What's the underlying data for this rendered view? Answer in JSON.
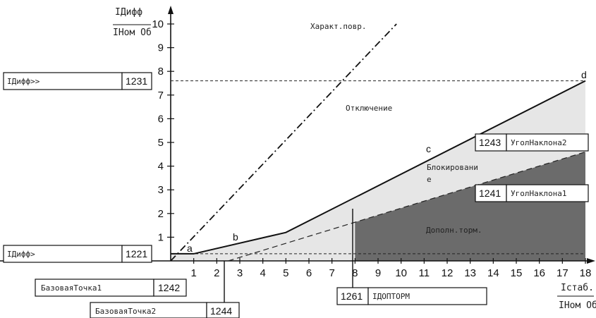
{
  "y_axis": {
    "label_top": "ІДифф",
    "label_bottom": "ІНом Об",
    "ticks": [
      "1",
      "2",
      "3",
      "4",
      "5",
      "6",
      "7",
      "8",
      "9",
      "10"
    ]
  },
  "x_axis": {
    "label_top": "Іcтаб.",
    "label_bottom": "ІНом Об",
    "ticks": [
      "1",
      "2",
      "3",
      "4",
      "5",
      "6",
      "7",
      "8",
      "9",
      "10",
      "11",
      "12",
      "13",
      "14",
      "15",
      "16",
      "17",
      "18"
    ]
  },
  "regions": {
    "trip": "Отключение",
    "block_1": "Блокировани",
    "block_2": "е",
    "add_brake": "Дополн.торм.",
    "fault_char": "Характ.повр."
  },
  "points": {
    "a": "a",
    "b": "b",
    "c": "c",
    "d": "d"
  },
  "param_boxes": {
    "idiff_hi": {
      "name": "ІДифф>>",
      "code": "1231"
    },
    "idiff_lo": {
      "name": "ІДифф>",
      "code": "1221"
    },
    "base_pt1": {
      "name": "БазоваяТочка1",
      "code": "1242"
    },
    "base_pt2": {
      "name": "БазоваяТочка2",
      "code": "1244"
    },
    "add_brake": {
      "name": "ІДОПТОРМ",
      "code": "1261"
    },
    "slope2": {
      "name": "УголНаклона2",
      "code": "1243"
    },
    "slope1": {
      "name": "УголНаклона1",
      "code": "1241"
    }
  },
  "chart_data": {
    "type": "line",
    "xlim": [
      0,
      18
    ],
    "ylim": [
      0,
      10
    ],
    "series": [
      {
        "name": "",
        "x": [
          0,
          1,
          5,
          18
        ],
        "y": [
          0.3,
          0.3,
          1.2,
          7.6
        ]
      },
      {
        "name": "",
        "x": [
          2.5,
          18
        ],
        "y": [
          0,
          4.6
        ]
      },
      {
        "name": "",
        "x": [
          0,
          9.8
        ],
        "y": [
          0,
          10
        ]
      },
      {
        "name": "",
        "x": [
          0,
          18
        ],
        "y": [
          7.6,
          7.6
        ]
      },
      {
        "name": "",
        "x": [
          0,
          18
        ],
        "y": [
          0.3,
          0.3
        ]
      }
    ],
    "colors": {
      "light_region": "#e6e6e6",
      "dark_region": "#6b6b6b"
    }
  }
}
